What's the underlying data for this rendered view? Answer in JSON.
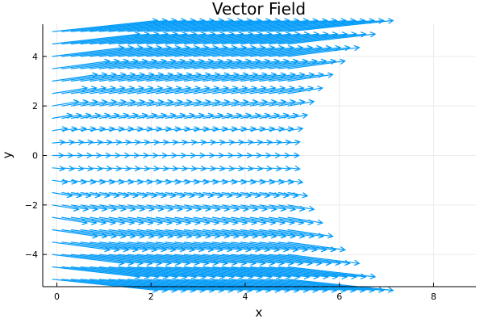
{
  "chart_data": {
    "type": "quiver",
    "title": "Vector Field",
    "xlabel": "x",
    "ylabel": "y",
    "xlim": [
      -0.3,
      8.9
    ],
    "ylim": [
      -5.3,
      5.3
    ],
    "xticks": [
      0,
      2,
      4,
      6,
      8
    ],
    "yticks": [
      -4,
      -2,
      0,
      2,
      4
    ],
    "xtick_labels": [
      "0",
      "2",
      "4",
      "6",
      "8"
    ],
    "ytick_labels": [
      "−4",
      "−2",
      "0",
      "2",
      "4"
    ],
    "grid": true,
    "color": "#009AF9",
    "field": {
      "x_start": -0.1,
      "x_step": 0.2,
      "x_count": 26,
      "y_start": -5.0,
      "y_step": 0.5,
      "y_count": 21,
      "u_expression": "0.24 + 0.08*y*y",
      "v_expression": "0.09*y",
      "note_direction": "arrows point rightward; slope tilts up for y>0 and down for y<0"
    }
  }
}
